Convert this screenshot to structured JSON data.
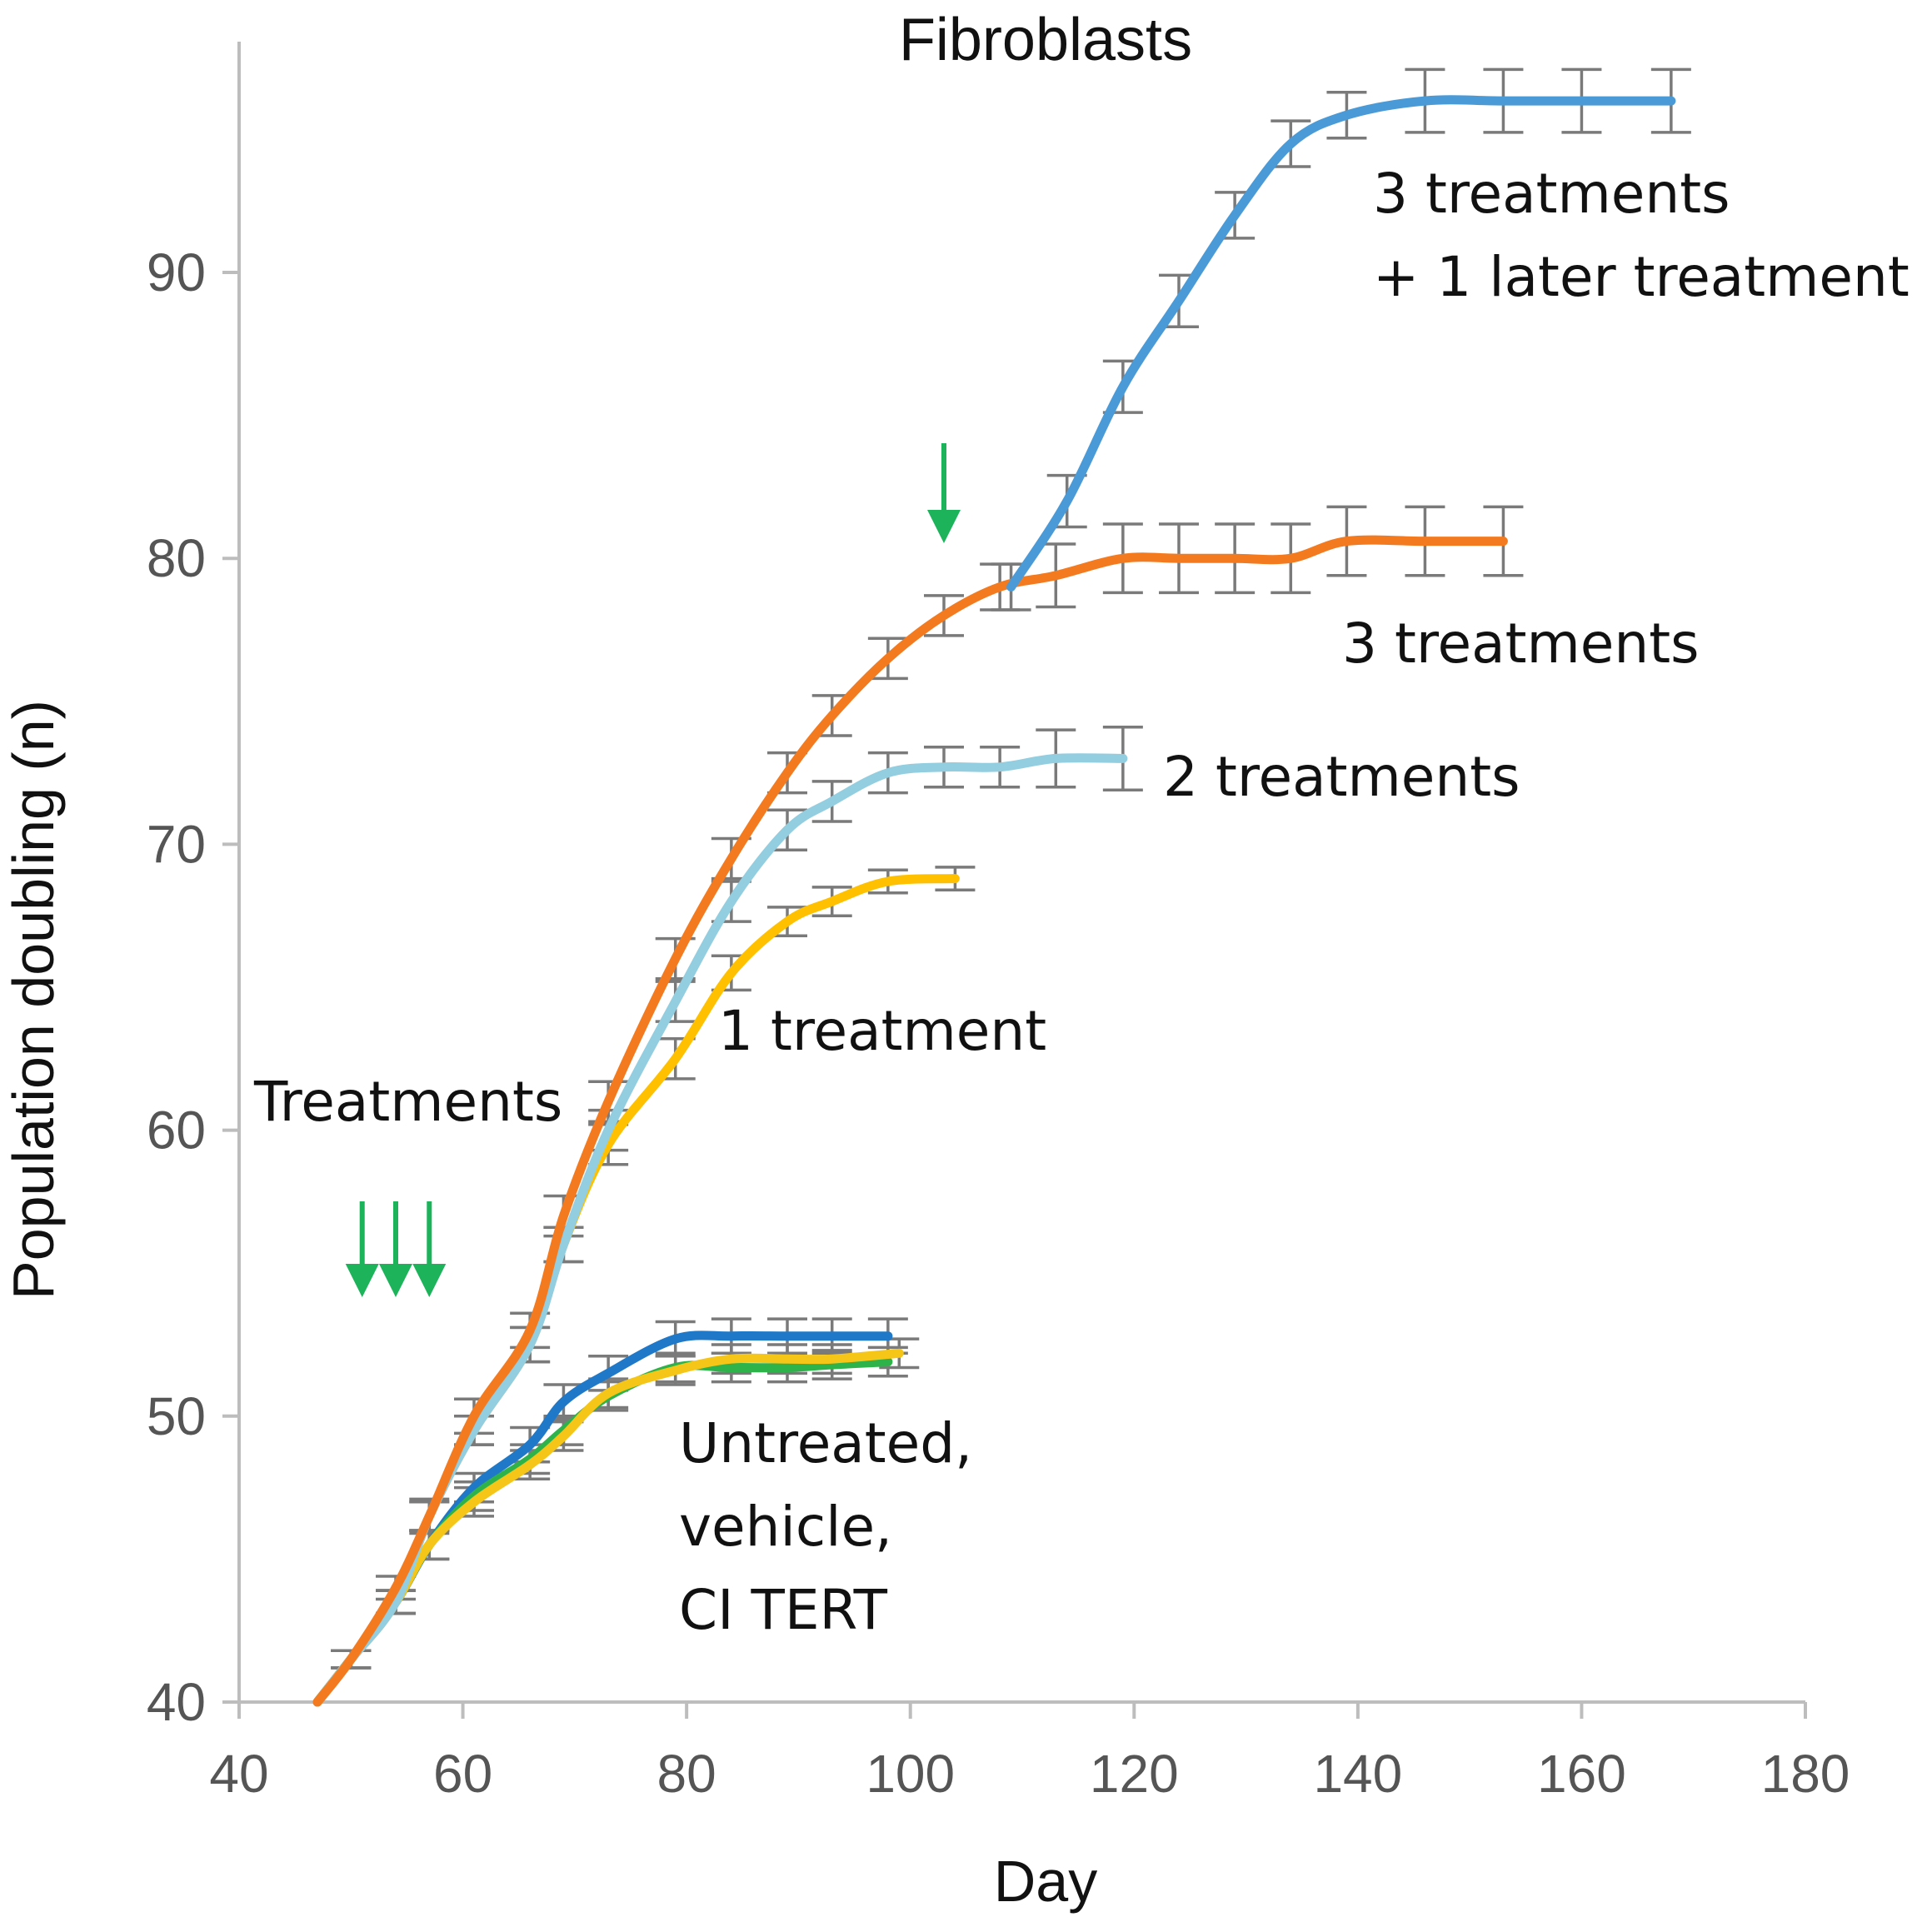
{
  "chart_data": {
    "type": "line",
    "title": "Fibroblasts",
    "xlabel": "Day",
    "ylabel": "Population doubling (n)",
    "xlim": [
      40,
      180
    ],
    "ylim": [
      40,
      98
    ],
    "xticks": [
      40,
      60,
      80,
      100,
      120,
      140,
      160,
      180
    ],
    "yticks": [
      40,
      50,
      60,
      70,
      80,
      90
    ],
    "grid": false,
    "series": [
      {
        "name": "Untreated",
        "color": "#1f78c8",
        "x": [
          47,
          50,
          54,
          57,
          61,
          66,
          69,
          73,
          79,
          84,
          89,
          93,
          98
        ],
        "y": [
          40,
          41.5,
          43.5,
          45.5,
          47.5,
          49,
          50.5,
          51.5,
          52.7,
          52.8,
          52.8,
          52.8,
          52.8
        ],
        "err": [
          0,
          0.3,
          0.4,
          0.5,
          0.5,
          0.6,
          0.6,
          0.6,
          0.6,
          0.6,
          0.6,
          0.6,
          0.6
        ]
      },
      {
        "name": "vehicle",
        "color": "#2db34a",
        "x": [
          47,
          50,
          54,
          57,
          61,
          66,
          69,
          73,
          79,
          84,
          89,
          93,
          98
        ],
        "y": [
          40,
          41.5,
          43.5,
          45.5,
          47.2,
          48.5,
          49.5,
          50.7,
          51.7,
          51.7,
          51.7,
          51.8,
          51.9
        ],
        "err": [
          0,
          0.3,
          0.4,
          0.5,
          0.5,
          0.5,
          0.5,
          0.5,
          0.5,
          0.5,
          0.5,
          0.5,
          0.5
        ]
      },
      {
        "name": "CI TERT",
        "color": "#f5c518",
        "x": [
          47,
          50,
          54,
          57,
          61,
          66,
          69,
          73,
          79,
          84,
          89,
          93,
          99
        ],
        "y": [
          40,
          41.5,
          43.5,
          45.5,
          47.0,
          48.3,
          49.3,
          50.8,
          51.6,
          52.0,
          52.0,
          52.0,
          52.2
        ],
        "err": [
          0,
          0.3,
          0.4,
          0.5,
          0.5,
          0.5,
          0.5,
          0.5,
          0.5,
          0.5,
          0.5,
          0.5,
          0.5
        ]
      },
      {
        "name": "1 treatment",
        "color": "#ffc000",
        "x": [
          47,
          50,
          54,
          57,
          61,
          66,
          69,
          73,
          79,
          84,
          89,
          93,
          98,
          104
        ],
        "y": [
          40,
          41.5,
          43.5,
          46.5,
          49.5,
          52.5,
          56,
          59.5,
          62.5,
          65.5,
          67.3,
          68,
          68.7,
          68.8
        ],
        "err": [
          0,
          0.3,
          0.4,
          0.5,
          0.5,
          0.6,
          0.6,
          0.7,
          0.7,
          0.6,
          0.5,
          0.5,
          0.4,
          0.4
        ]
      },
      {
        "name": "2 treatments",
        "color": "#92cde0",
        "x": [
          47,
          50,
          54,
          57,
          61,
          66,
          69,
          73,
          79,
          84,
          89,
          93,
          98,
          103,
          108,
          113,
          119
        ],
        "y": [
          40,
          41.5,
          43.5,
          46.5,
          49.5,
          52.5,
          56,
          60,
          64.5,
          68,
          70.5,
          71.5,
          72.5,
          72.7,
          72.7,
          73.0,
          73.0
        ],
        "err": [
          0,
          0.3,
          0.4,
          0.5,
          0.5,
          0.6,
          0.6,
          0.7,
          0.7,
          0.7,
          0.7,
          0.7,
          0.7,
          0.7,
          0.7,
          1.0,
          1.1
        ]
      },
      {
        "name": "3 treatments",
        "color": "#f47a20",
        "x": [
          47,
          50,
          54,
          57,
          61,
          66,
          69,
          73,
          79,
          84,
          89,
          93,
          98,
          103,
          108,
          113,
          119,
          124,
          129,
          134,
          139,
          146,
          153
        ],
        "y": [
          40,
          41.5,
          44,
          46.5,
          50,
          53,
          57,
          61,
          66,
          69.5,
          72.5,
          74.5,
          76.5,
          78,
          79,
          79.4,
          80,
          80,
          80,
          80,
          80.6,
          80.6,
          80.6
        ],
        "err": [
          0,
          0.3,
          0.4,
          0.6,
          0.6,
          0.6,
          0.7,
          0.7,
          0.7,
          0.7,
          0.7,
          0.7,
          0.7,
          0.7,
          0.8,
          1.1,
          1.2,
          1.2,
          1.2,
          1.2,
          1.2,
          1.2,
          1.2
        ]
      },
      {
        "name": "3 treatments + 1 later treatment",
        "color": "#4a9ad8",
        "x": [
          109,
          114,
          119,
          124,
          129,
          134,
          139,
          146,
          153,
          160,
          168
        ],
        "y": [
          79,
          82,
          86,
          89,
          92,
          94.5,
          95.5,
          96,
          96,
          96,
          96
        ],
        "err": [
          0.8,
          0.9,
          0.9,
          0.9,
          0.8,
          0.8,
          0.8,
          1.1,
          1.1,
          1.1,
          1.1
        ]
      }
    ],
    "annotations": {
      "treatments_label": "Treatments",
      "label_1_treatment": "1 treatment",
      "label_2_treatments": "2 treatments",
      "label_3_treatments": "3 treatments",
      "label_later_line1": "3 treatments",
      "label_later_line2": "+ 1 later treatment",
      "label_untreated_line1": "Untreated,",
      "label_untreated_line2": "vehicle,",
      "label_untreated_line3": "CI TERT",
      "arrow_color": "#1db35a",
      "treatment_arrow_days": [
        51,
        54,
        57
      ],
      "later_arrow_day": 103
    }
  }
}
